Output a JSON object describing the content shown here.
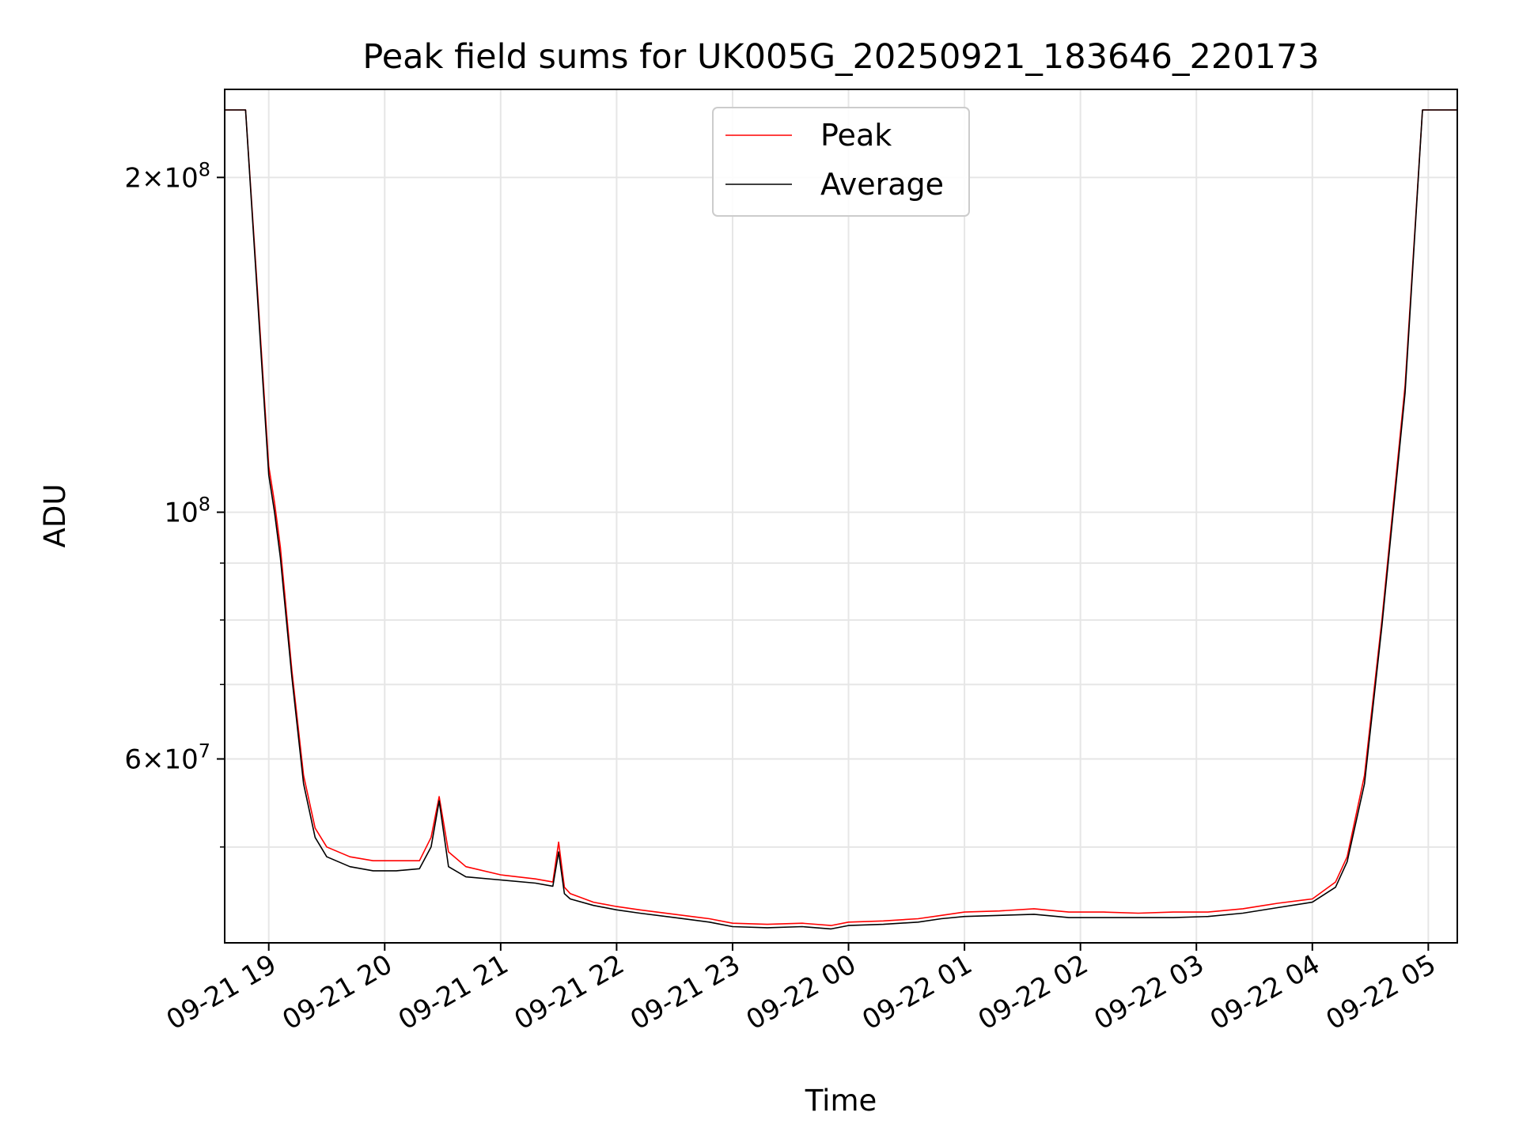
{
  "chart_data": {
    "type": "line",
    "title": "Peak field sums for UK005G_20250921_183646_220173",
    "xlabel": "Time",
    "ylabel": "ADU",
    "yscale": "log",
    "ylim": [
      41000000,
      240000000
    ],
    "xlim": [
      18.62,
      29.25
    ],
    "grid": true,
    "x_unit": "hours since 2025-09-21 00:00",
    "x_ticks": [
      {
        "value": 19,
        "label": "09-21 19"
      },
      {
        "value": 20,
        "label": "09-21 20"
      },
      {
        "value": 21,
        "label": "09-21 21"
      },
      {
        "value": 22,
        "label": "09-21 22"
      },
      {
        "value": 23,
        "label": "09-21 23"
      },
      {
        "value": 24,
        "label": "09-22 00"
      },
      {
        "value": 25,
        "label": "09-22 01"
      },
      {
        "value": 26,
        "label": "09-22 02"
      },
      {
        "value": 27,
        "label": "09-22 03"
      },
      {
        "value": 28,
        "label": "09-22 04"
      },
      {
        "value": 29,
        "label": "09-22 05"
      }
    ],
    "y_major_ticks": [
      {
        "value": 200000000,
        "mantissa": "2",
        "exponent": "8"
      },
      {
        "value": 100000000,
        "mantissa": "",
        "exponent": "8"
      },
      {
        "value": 60000000,
        "mantissa": "6",
        "exponent": "7"
      }
    ],
    "y_minor_ticks": [
      50000000,
      70000000,
      80000000,
      90000000
    ],
    "legend": {
      "position": "upper-center"
    },
    "series": [
      {
        "name": "Peak",
        "color": "#ff0000",
        "x": [
          18.62,
          18.8,
          18.9,
          19.0,
          19.05,
          19.1,
          19.2,
          19.3,
          19.4,
          19.5,
          19.7,
          19.9,
          20.1,
          20.3,
          20.4,
          20.47,
          20.55,
          20.7,
          21.0,
          21.3,
          21.45,
          21.5,
          21.55,
          21.6,
          21.8,
          22.0,
          22.2,
          22.5,
          22.8,
          23.0,
          23.3,
          23.6,
          23.85,
          24.0,
          24.3,
          24.6,
          24.8,
          25.0,
          25.3,
          25.6,
          25.9,
          26.2,
          26.5,
          26.8,
          27.1,
          27.4,
          27.7,
          28.0,
          28.2,
          28.3,
          28.45,
          28.6,
          28.8,
          28.95,
          29.25
        ],
        "values": [
          230000000,
          230000000,
          160000000,
          110000000,
          102000000,
          93000000,
          72000000,
          58000000,
          52000000,
          50000000,
          49000000,
          48600000,
          48600000,
          48600000,
          51000000,
          55500000,
          49500000,
          48000000,
          47200000,
          46800000,
          46500000,
          50500000,
          46000000,
          45400000,
          44600000,
          44200000,
          43900000,
          43500000,
          43100000,
          42700000,
          42600000,
          42700000,
          42500000,
          42800000,
          42900000,
          43100000,
          43400000,
          43700000,
          43800000,
          44000000,
          43700000,
          43700000,
          43600000,
          43700000,
          43700000,
          44000000,
          44500000,
          44900000,
          46500000,
          49000000,
          58000000,
          80000000,
          130000000,
          230000000,
          230000000
        ]
      },
      {
        "name": "Average",
        "color": "#000000",
        "x": [
          18.62,
          18.8,
          18.9,
          19.0,
          19.05,
          19.1,
          19.2,
          19.3,
          19.4,
          19.5,
          19.7,
          19.9,
          20.1,
          20.3,
          20.4,
          20.47,
          20.55,
          20.7,
          21.0,
          21.3,
          21.45,
          21.5,
          21.55,
          21.6,
          21.8,
          22.0,
          22.2,
          22.5,
          22.8,
          23.0,
          23.3,
          23.6,
          23.85,
          24.0,
          24.3,
          24.6,
          24.8,
          25.0,
          25.3,
          25.6,
          25.9,
          26.2,
          26.5,
          26.8,
          27.1,
          27.4,
          27.7,
          28.0,
          28.2,
          28.3,
          28.45,
          28.6,
          28.8,
          28.95,
          29.25
        ],
        "values": [
          230000000,
          230000000,
          158000000,
          108000000,
          100000000,
          91000000,
          71000000,
          57000000,
          51000000,
          49000000,
          48000000,
          47600000,
          47600000,
          47800000,
          50000000,
          55000000,
          48000000,
          47000000,
          46700000,
          46400000,
          46100000,
          49500000,
          45400000,
          44900000,
          44300000,
          43900000,
          43600000,
          43200000,
          42800000,
          42400000,
          42300000,
          42400000,
          42200000,
          42500000,
          42600000,
          42800000,
          43100000,
          43300000,
          43400000,
          43500000,
          43200000,
          43200000,
          43200000,
          43200000,
          43300000,
          43600000,
          44100000,
          44600000,
          46000000,
          48500000,
          57000000,
          79000000,
          128000000,
          230000000,
          230000000
        ]
      }
    ]
  }
}
